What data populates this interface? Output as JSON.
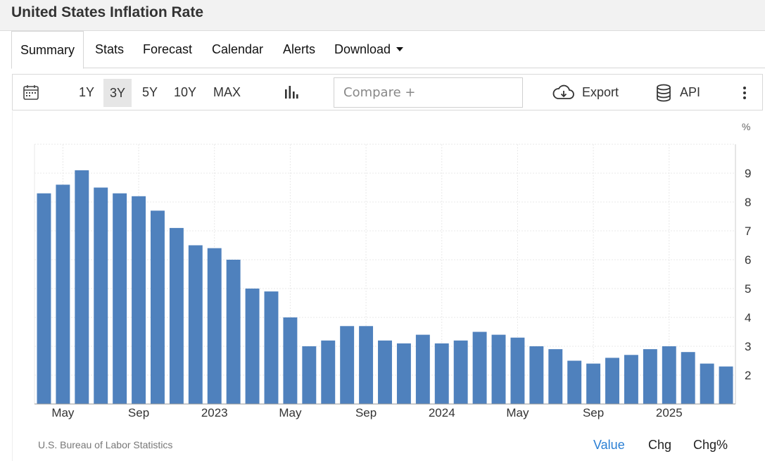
{
  "page": {
    "title": "United States Inflation Rate"
  },
  "tabs": [
    {
      "label": "Summary"
    },
    {
      "label": "Stats"
    },
    {
      "label": "Forecast"
    },
    {
      "label": "Calendar"
    },
    {
      "label": "Alerts"
    },
    {
      "label": "Download"
    }
  ],
  "toolbar": {
    "ranges": [
      "1Y",
      "3Y",
      "5Y",
      "10Y",
      "MAX"
    ],
    "selected_range": "3Y",
    "compare_placeholder": "Compare +",
    "export_label": "Export",
    "api_label": "API",
    "icons": [
      "calendar-icon",
      "bar-chart-icon",
      "cloud-download-icon",
      "database-icon",
      "more-vertical-icon"
    ]
  },
  "chart_data": {
    "type": "bar",
    "unit_label": "%",
    "ylim": [
      1,
      10
    ],
    "y_ticks": [
      2,
      3,
      4,
      5,
      6,
      7,
      8,
      9
    ],
    "grid": true,
    "color": "#4f81bd",
    "values": [
      8.3,
      8.6,
      9.1,
      8.5,
      8.3,
      8.2,
      7.7,
      7.1,
      6.5,
      6.4,
      6.0,
      5.0,
      4.9,
      4.0,
      3.0,
      3.2,
      3.7,
      3.7,
      3.2,
      3.1,
      3.4,
      3.1,
      3.2,
      3.5,
      3.4,
      3.3,
      3.0,
      2.9,
      2.5,
      2.4,
      2.6,
      2.7,
      2.9,
      3.0,
      2.8,
      2.4,
      2.3
    ],
    "x_labels": [
      {
        "index": 1,
        "label": "May"
      },
      {
        "index": 5,
        "label": "Sep"
      },
      {
        "index": 9,
        "label": "2023"
      },
      {
        "index": 13,
        "label": "May"
      },
      {
        "index": 17,
        "label": "Sep"
      },
      {
        "index": 21,
        "label": "2024"
      },
      {
        "index": 25,
        "label": "May"
      },
      {
        "index": 29,
        "label": "Sep"
      },
      {
        "index": 33,
        "label": "2025"
      }
    ]
  },
  "footer": {
    "source": "U.S. Bureau of Labor Statistics",
    "value_tab": "Value",
    "chg_tab": "Chg",
    "chgpct_tab": "Chg%",
    "active_color": "#2a7fd4"
  }
}
